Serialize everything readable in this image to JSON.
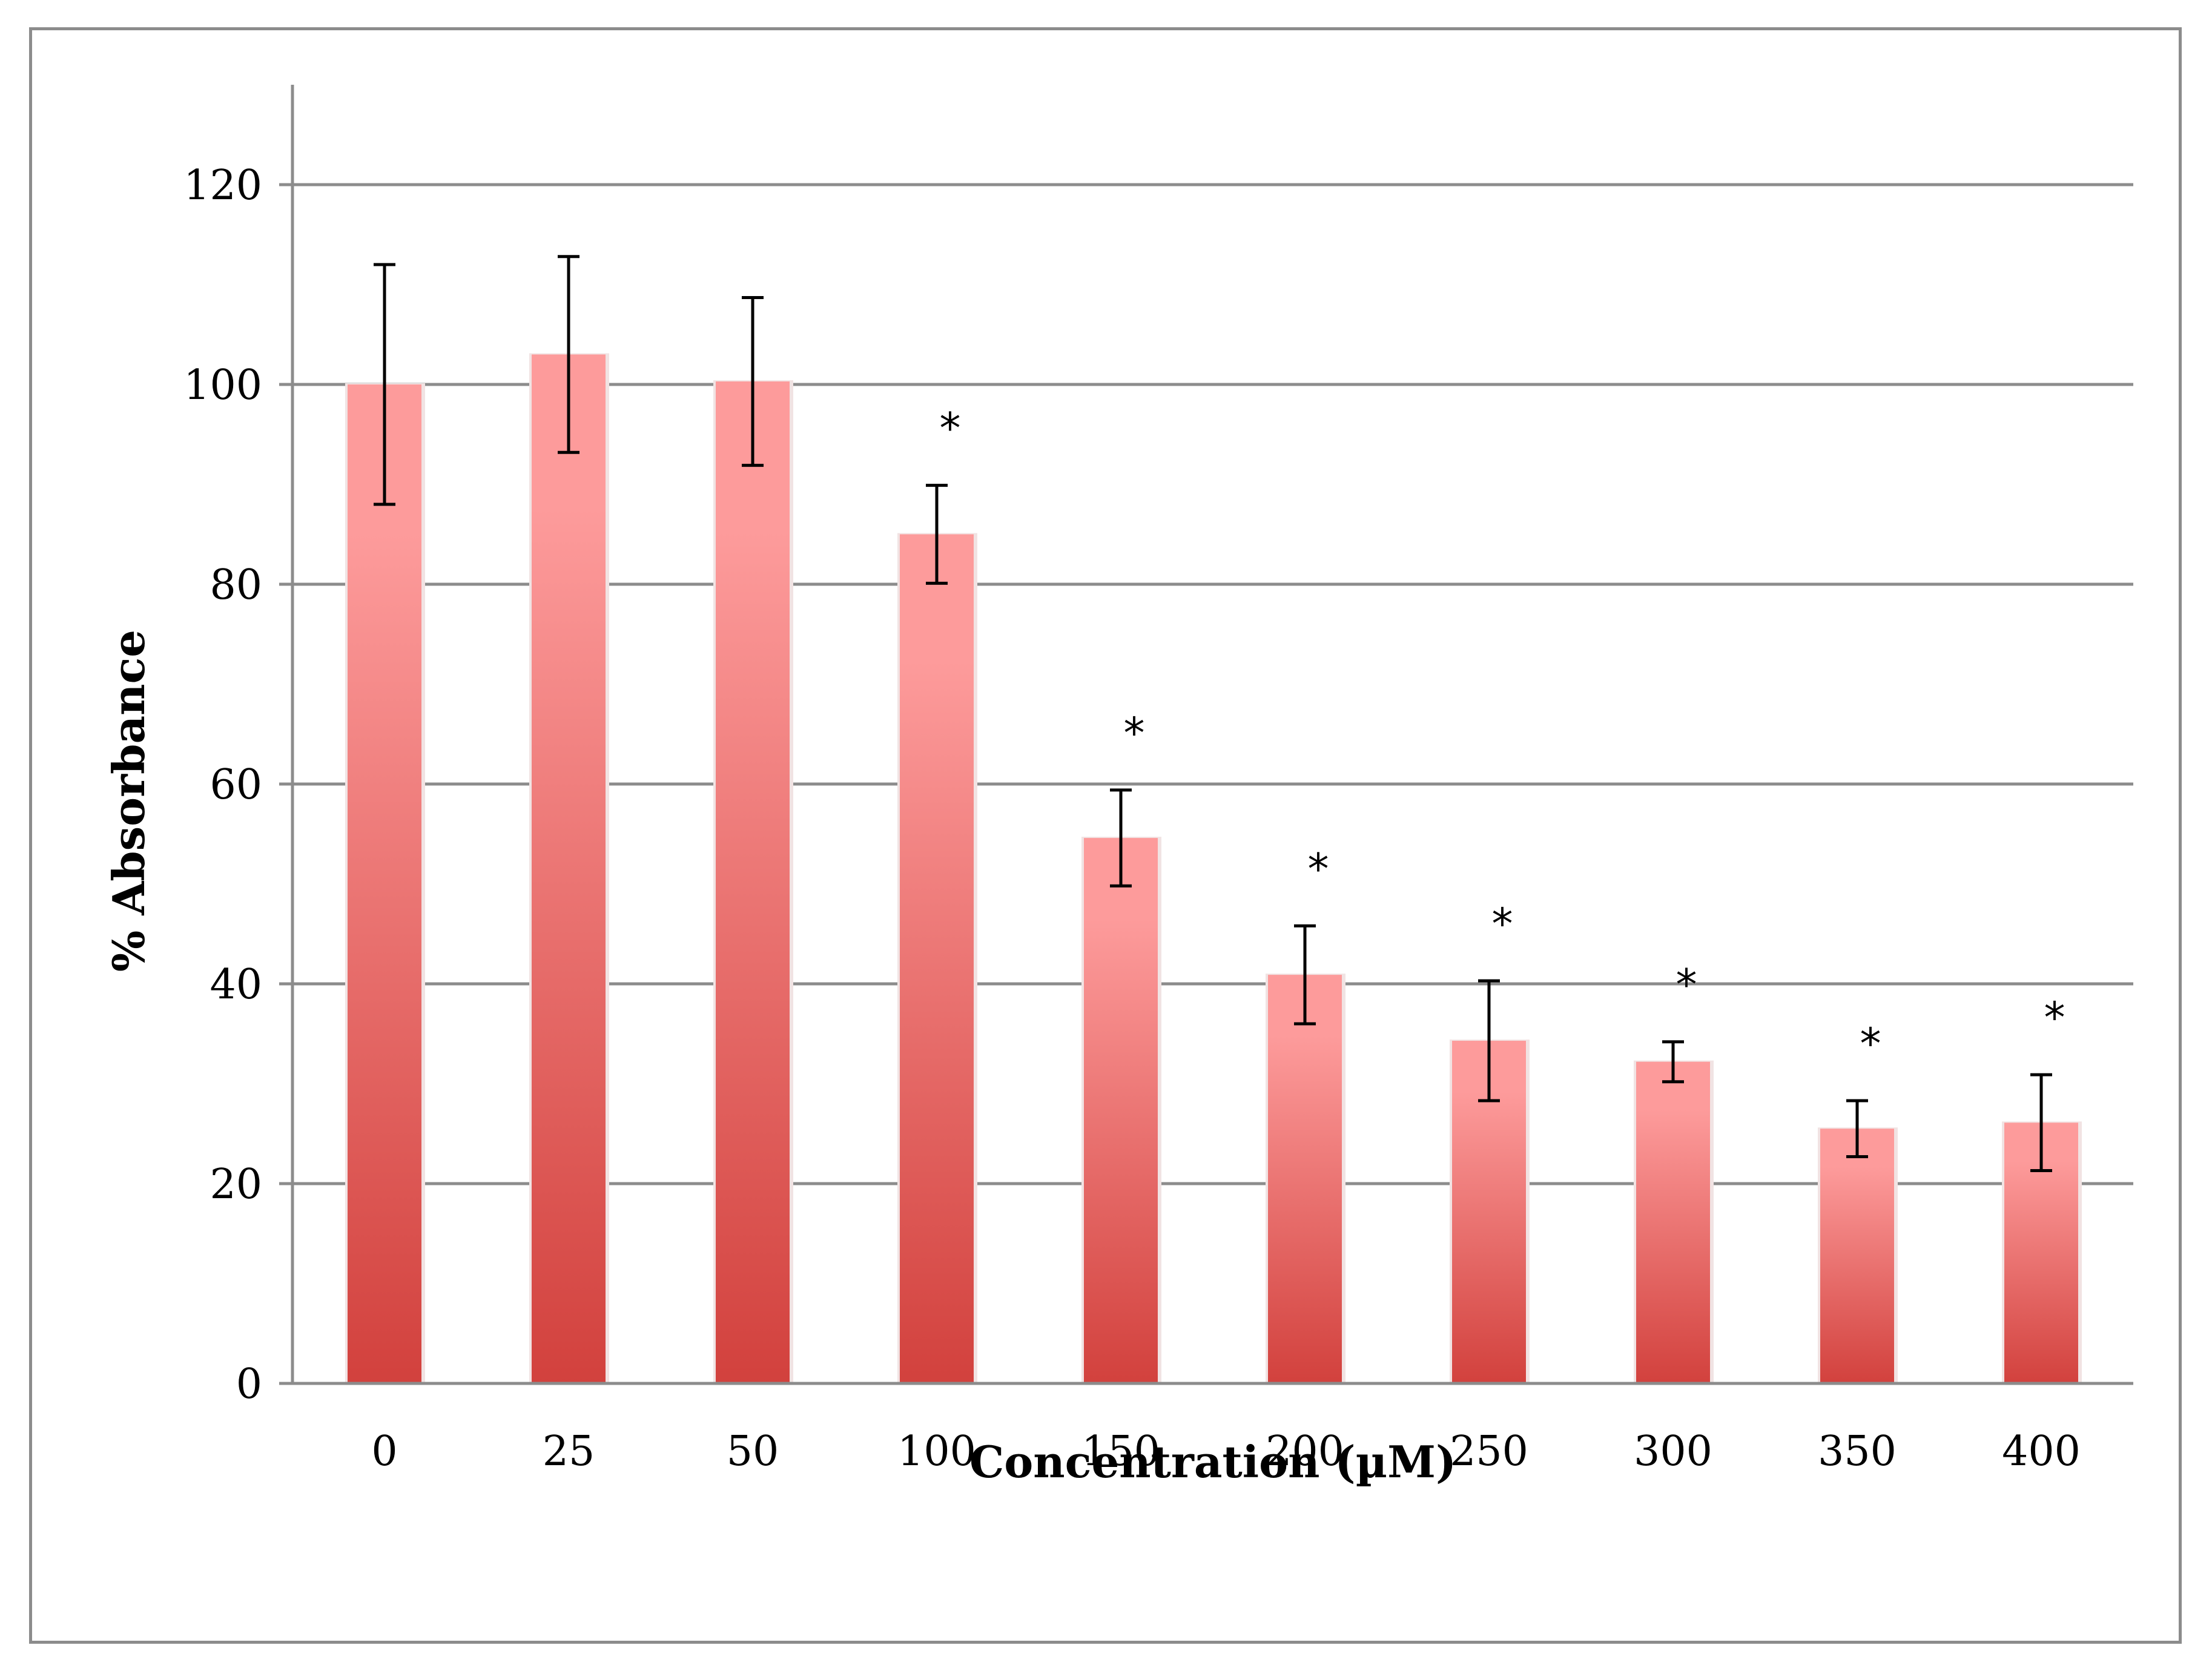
{
  "chart_data": {
    "type": "bar",
    "categories": [
      "0",
      "25",
      "50",
      "100",
      "150",
      "200",
      "250",
      "300",
      "350",
      "400"
    ],
    "series": [
      {
        "values": [
          100,
          103,
          100.3,
          85,
          54.6,
          40.9,
          34.3,
          32.2,
          25.5,
          26.1
        ],
        "error": [
          12,
          9.8,
          8.4,
          4.9,
          4.8,
          4.9,
          6.0,
          2.0,
          2.8,
          4.8
        ],
        "significance": [
          "",
          "",
          "",
          "*",
          "*",
          "*",
          "*",
          "*",
          "*",
          "*"
        ]
      }
    ],
    "xlabel": "Concentration (µM)",
    "ylabel": "% Absorbance",
    "ylim": [
      0,
      130
    ],
    "yticks": [
      0,
      20,
      40,
      60,
      80,
      100,
      120
    ],
    "grid": true,
    "legend": "none",
    "colors": {
      "bar_top": "#fd9b9b",
      "bar_bottom": "#d2413d",
      "grid": "#8c8c8c",
      "error": "#000000"
    }
  }
}
